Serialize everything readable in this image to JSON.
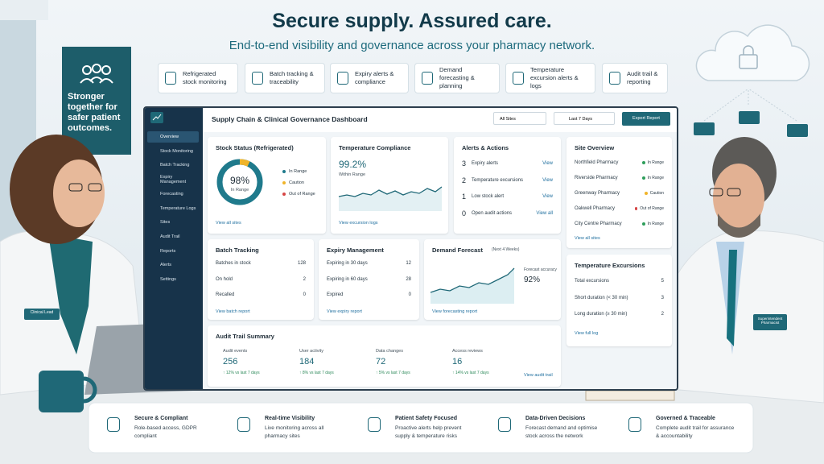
{
  "header": {
    "title": "Secure supply. Assured care.",
    "subtitle": "End-to-end visibility and governance across your pharmacy network."
  },
  "features": [
    {
      "label": "Refrigerated stock monitoring"
    },
    {
      "label": "Batch tracking & traceability"
    },
    {
      "label": "Expiry alerts & compliance"
    },
    {
      "label": "Demand forecasting & planning"
    },
    {
      "label": "Temperature excursion alerts & logs"
    },
    {
      "label": "Audit trail & reporting"
    }
  ],
  "poster": {
    "text": "Stronger together for safer patient outcomes."
  },
  "dashboard": {
    "title": "Supply Chain & Clinical Governance Dashboard",
    "site_filter": "All Sites",
    "date_filter": "Last 7 Days",
    "export": "Export Report",
    "nav": [
      "Overview",
      "Stock Monitoring",
      "Batch Tracking",
      "Expiry Management",
      "Forecasting",
      "Temperature Logs",
      "Sites",
      "Audit Trail",
      "Reports",
      "Alerts",
      "Settings"
    ],
    "stock_status": {
      "title": "Stock Status (Refrigerated)",
      "value": "98%",
      "caption": "In Range",
      "legend": [
        {
          "label": "In Range",
          "color": "#1f7a8c"
        },
        {
          "label": "Caution",
          "color": "#f0b429"
        },
        {
          "label": "Out of Range",
          "color": "#d64545"
        }
      ],
      "link": "View all sites"
    },
    "temperature_compliance": {
      "title": "Temperature Compliance",
      "value": "99.2%",
      "caption": "Within Range",
      "link": "View excursion logs"
    },
    "alerts": {
      "title": "Alerts & Actions",
      "rows": [
        {
          "count": 3,
          "label": "Expiry alerts",
          "action": "View"
        },
        {
          "count": 2,
          "label": "Temperature excursions",
          "action": "View"
        },
        {
          "count": 1,
          "label": "Low stock alert",
          "action": "View"
        },
        {
          "count": 0,
          "label": "Open audit actions",
          "action": "View all"
        }
      ]
    },
    "site_overview": {
      "title": "Site Overview",
      "rows": [
        {
          "name": "Northfield Pharmacy",
          "status": "In Range",
          "color": "#2e9e5b"
        },
        {
          "name": "Riverside Pharmacy",
          "status": "In Range",
          "color": "#2e9e5b"
        },
        {
          "name": "Greenway Pharmacy",
          "status": "Caution",
          "color": "#f0b429"
        },
        {
          "name": "Oakwell Pharmacy",
          "status": "Out of Range",
          "color": "#d64545"
        },
        {
          "name": "City Centre Pharmacy",
          "status": "In Range",
          "color": "#2e9e5b"
        }
      ],
      "link": "View all sites"
    },
    "batch_tracking": {
      "title": "Batch Tracking",
      "rows": [
        [
          "Batches in stock",
          128
        ],
        [
          "On hold",
          2
        ],
        [
          "Recalled",
          0
        ]
      ],
      "link": "View batch report"
    },
    "expiry_management": {
      "title": "Expiry Management",
      "rows": [
        [
          "Expiring in 30 days",
          12
        ],
        [
          "Expiring in 60 days",
          28
        ],
        [
          "Expired",
          0
        ]
      ],
      "link": "View expiry report"
    },
    "demand_forecast": {
      "title": "Demand Forecast",
      "note": "(Next 4 Weeks)",
      "accuracy_label": "Forecast accuracy",
      "accuracy": "92%",
      "link": "View forecasting report"
    },
    "temperature_excursions": {
      "title": "Temperature Excursions",
      "rows": [
        [
          "Total excursions",
          5
        ],
        [
          "Short duration (< 30 min)",
          3
        ],
        [
          "Long duration (≥ 30 min)",
          2
        ]
      ],
      "link": "View full log"
    },
    "audit_trail": {
      "title": "Audit Trail Summary",
      "metrics": [
        {
          "label": "Audit events",
          "value": 256,
          "change": "↑ 12% vs last 7 days"
        },
        {
          "label": "User activity",
          "value": 184,
          "change": "↑ 8% vs last 7 days"
        },
        {
          "label": "Data changes",
          "value": 72,
          "change": "↑ 5% vs last 7 days"
        },
        {
          "label": "Access reviews",
          "value": 16,
          "change": "↑ 14% vs last 7 days"
        }
      ],
      "link": "View audit trail"
    }
  },
  "badges": {
    "left": "Clinical Lead",
    "right": "Superintendent Pharmacist"
  },
  "benefits": [
    {
      "title": "Secure & Compliant",
      "text": "Role-based access, GDPR compliant"
    },
    {
      "title": "Real-time Visibility",
      "text": "Live monitoring across all pharmacy sites"
    },
    {
      "title": "Patient Safety Focused",
      "text": "Proactive alerts help prevent supply & temperature risks"
    },
    {
      "title": "Data-Driven Decisions",
      "text": "Forecast demand and optimise stock across the network"
    },
    {
      "title": "Governed & Traceable",
      "text": "Complete audit trail for assurance & accountability"
    }
  ]
}
